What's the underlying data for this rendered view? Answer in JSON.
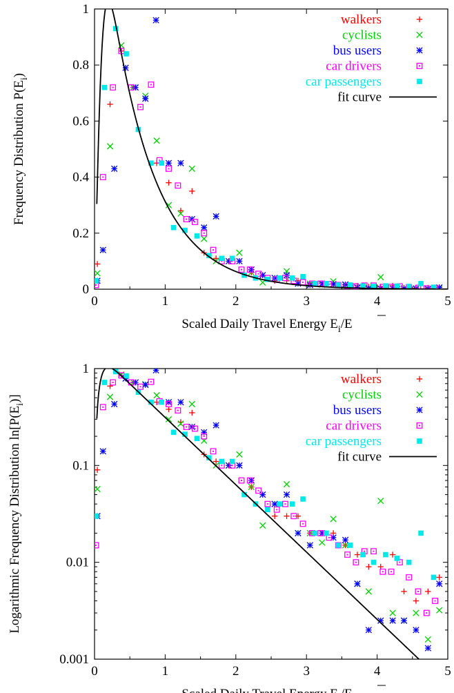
{
  "chart_data": [
    {
      "type": "scatter",
      "xlabel": "Scaled Daily Travel Energy E",
      "xlabel_sub": "i",
      "xlabel_tail": "/E",
      "ylabel": "Frequency Distribution P(E",
      "ylabel_sub": "i",
      "ylabel_tail": ")",
      "xlim": [
        0,
        5
      ],
      "ylim": [
        0,
        1
      ],
      "yscale": "linear",
      "xticks": [
        0,
        1,
        2,
        3,
        4,
        5
      ],
      "xtick_labels": [
        "0",
        "1",
        "2",
        "3",
        "4",
        "5"
      ],
      "yticks": [
        0,
        0.2,
        0.4,
        0.6,
        0.8,
        1
      ],
      "ytick_labels": [
        "0",
        "0.2",
        "0.4",
        "0.6",
        "0.8",
        "1"
      ],
      "legend_position": "top-right",
      "series": [
        {
          "name": "walkers",
          "color": "#ff0000",
          "marker": "plus",
          "x": [
            0.04,
            0.22,
            0.38,
            0.55,
            0.72,
            0.88,
            1.05,
            1.22,
            1.38,
            1.55,
            1.72,
            1.9,
            2.05,
            2.22,
            2.38,
            2.55,
            2.72,
            2.88,
            3.05,
            3.22,
            3.38,
            3.55,
            3.72,
            3.88,
            4.05,
            4.22,
            4.38,
            4.55,
            4.72,
            4.88
          ],
          "y": [
            0.09,
            0.66,
            0.85,
            0.72,
            0.68,
            0.45,
            0.38,
            0.28,
            0.35,
            0.13,
            0.11,
            0.1,
            0.1,
            0.06,
            0.05,
            0.03,
            0.03,
            0.03,
            0.02,
            0.02,
            0.02,
            0.015,
            0.012,
            0.009,
            0.009,
            0.012,
            0.005,
            0.004,
            0.005,
            0.007
          ]
        },
        {
          "name": "cyclists",
          "color": "#00d000",
          "marker": "cross",
          "x": [
            0.04,
            0.22,
            0.38,
            0.55,
            0.72,
            0.88,
            1.05,
            1.22,
            1.38,
            1.55,
            1.72,
            1.9,
            2.05,
            2.22,
            2.38,
            2.55,
            2.72,
            2.88,
            3.05,
            3.22,
            3.38,
            3.55,
            3.72,
            3.88,
            4.05,
            4.22,
            4.38,
            4.55,
            4.72,
            4.88
          ],
          "y": [
            0.057,
            0.51,
            0.87,
            0.72,
            0.69,
            0.53,
            0.3,
            0.27,
            0.43,
            0.18,
            0.1,
            0.1,
            0.13,
            0.06,
            0.024,
            0.04,
            0.064,
            0.02,
            0.02,
            0.016,
            0.028,
            0.015,
            0.006,
            0.005,
            0.043,
            0.003,
            0.0025,
            0.003,
            0.0016,
            0.0032
          ]
        },
        {
          "name": "bus users",
          "color": "#0000ff",
          "marker": "star",
          "x": [
            0.04,
            0.12,
            0.28,
            0.44,
            0.58,
            0.72,
            0.87,
            1.05,
            1.22,
            1.38,
            1.55,
            1.72,
            1.9,
            2.05,
            2.22,
            2.38,
            2.55,
            2.72,
            2.88,
            3.05,
            3.22,
            3.38,
            3.55,
            3.72,
            3.88,
            4.05,
            4.22,
            4.38,
            4.55,
            4.72,
            4.88
          ],
          "y": [
            0.03,
            0.14,
            0.43,
            0.79,
            0.72,
            0.68,
            0.96,
            0.45,
            0.45,
            0.25,
            0.22,
            0.26,
            0.1,
            0.1,
            0.07,
            0.05,
            0.04,
            0.05,
            0.02,
            0.015,
            0.02,
            0.018,
            0.017,
            0.006,
            0.002,
            0.0025,
            0.0025,
            0.0025,
            0.002,
            0.0013,
            0.006
          ]
        },
        {
          "name": "car drivers",
          "color": "#ff00ff",
          "marker": "square-open",
          "x": [
            0.02,
            0.12,
            0.26,
            0.38,
            0.52,
            0.65,
            0.8,
            0.92,
            1.05,
            1.18,
            1.3,
            1.42,
            1.55,
            1.68,
            1.8,
            1.95,
            2.08,
            2.2,
            2.32,
            2.45,
            2.58,
            2.7,
            2.82,
            2.95,
            3.08,
            3.2,
            3.32,
            3.45,
            3.58,
            3.7,
            3.82,
            3.95,
            4.08,
            4.2,
            4.32,
            4.45,
            4.58,
            4.7,
            4.82
          ],
          "y": [
            0.015,
            0.4,
            0.72,
            0.85,
            0.72,
            0.65,
            0.73,
            0.46,
            0.43,
            0.37,
            0.25,
            0.24,
            0.2,
            0.14,
            0.1,
            0.1,
            0.07,
            0.07,
            0.055,
            0.04,
            0.035,
            0.04,
            0.03,
            0.025,
            0.02,
            0.02,
            0.018,
            0.015,
            0.012,
            0.01,
            0.013,
            0.013,
            0.008,
            0.008,
            0.01,
            0.007,
            0.005,
            0.003,
            0.004
          ]
        },
        {
          "name": "car passengers",
          "color": "#00e8e8",
          "marker": "square-filled",
          "x": [
            0.02,
            0.14,
            0.3,
            0.45,
            0.62,
            0.8,
            0.95,
            1.12,
            1.28,
            1.45,
            1.62,
            1.8,
            1.95,
            2.12,
            2.28,
            2.45,
            2.62,
            2.8,
            2.95,
            3.12,
            3.28,
            3.45,
            3.62,
            3.8,
            3.95,
            4.12,
            4.28,
            4.45,
            4.62,
            4.8
          ],
          "y": [
            0.03,
            0.72,
            0.93,
            0.84,
            0.57,
            0.45,
            0.45,
            0.22,
            0.21,
            0.19,
            0.12,
            0.11,
            0.11,
            0.05,
            0.04,
            0.035,
            0.04,
            0.04,
            0.045,
            0.02,
            0.02,
            0.015,
            0.015,
            0.012,
            0.01,
            0.012,
            0.011,
            0.01,
            0.02,
            0.007
          ]
        }
      ],
      "fit": {
        "name": "fit curve",
        "color": "#000000",
        "model": "2.8*x^1.5 / (x^1.5 + 0.4) * exp(-1.6*x) scaled"
      }
    },
    {
      "type": "scatter",
      "xlabel": "Scaled Daily Travel Energy E",
      "xlabel_sub": "i",
      "xlabel_tail": "/E",
      "ylabel": "Logarithmic Frequency Distribution ln[P(E",
      "ylabel_sub": "i",
      "ylabel_tail": ")]",
      "xlim": [
        0,
        5
      ],
      "ylim": [
        0.001,
        1
      ],
      "yscale": "log",
      "xticks": [
        0,
        1,
        2,
        3,
        4,
        5
      ],
      "xtick_labels": [
        "0",
        "1",
        "2",
        "3",
        "4",
        "5"
      ],
      "yticks": [
        0.001,
        0.01,
        0.1,
        1
      ],
      "ytick_labels": [
        "0.001",
        "0.01",
        "0.1",
        "1"
      ],
      "legend_position": "top-right",
      "same_series_as_first": true
    }
  ]
}
